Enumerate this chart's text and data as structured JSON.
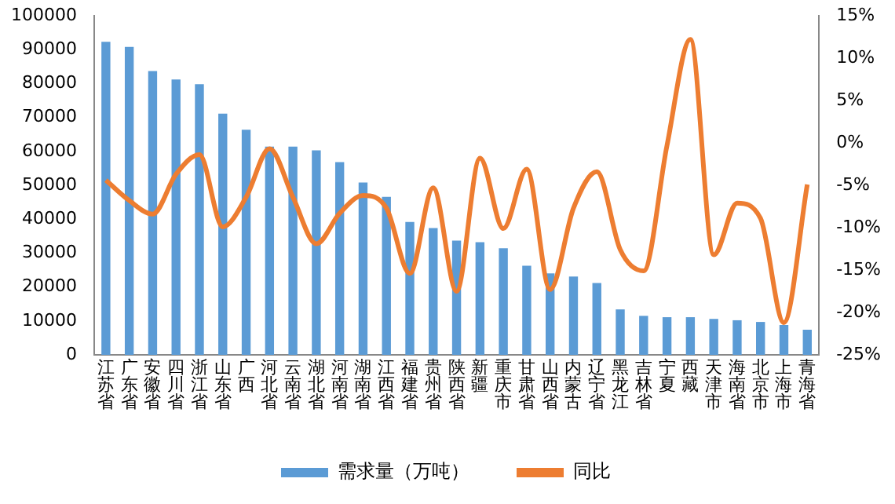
{
  "chart_data": {
    "type": "bar",
    "categories": [
      "江苏省",
      "广东省",
      "安徽省",
      "四川省",
      "浙江省",
      "山东省",
      "广西",
      "河北省",
      "云南省",
      "湖北省",
      "河南省",
      "湖南省",
      "江西省",
      "福建省",
      "贵州省",
      "陕西省",
      "新疆",
      "重庆市",
      "甘肃省",
      "山西省",
      "内蒙古",
      "辽宁省",
      "黑龙江",
      "吉林省",
      "宁夏",
      "西藏",
      "天津市",
      "海南省",
      "北京市",
      "上海市",
      "青海省"
    ],
    "series": [
      {
        "name": "需求量（万吨）",
        "color": "#5b9bd5",
        "values": [
          92300,
          90800,
          83700,
          81200,
          79800,
          71100,
          66400,
          61400,
          61400,
          60300,
          56800,
          50800,
          46600,
          39200,
          37400,
          33700,
          33200,
          31400,
          26300,
          24000,
          23100,
          21200,
          13400,
          11500,
          11100,
          11100,
          10600,
          10200,
          9700,
          8800,
          7400
        ]
      },
      {
        "name": "同比",
        "type": "line",
        "axis": "y2",
        "color": "#ed7d31",
        "values": [
          -4.4,
          -6.8,
          -8.4,
          -3.7,
          -1.4,
          -9.9,
          -6.4,
          -0.7,
          -6.4,
          -11.9,
          -8.3,
          -6.2,
          -7.7,
          -15.4,
          -5.3,
          -17.5,
          -1.8,
          -10.1,
          -3.1,
          -17.3,
          -7.7,
          -3.4,
          -12.6,
          -15.1,
          -0.3,
          12.2,
          -13.2,
          -7.1,
          -8.9,
          -21.2,
          -4.9
        ]
      }
    ],
    "ylim": [
      0,
      100000
    ],
    "yticks": [
      0,
      10000,
      20000,
      30000,
      40000,
      50000,
      60000,
      70000,
      80000,
      90000,
      100000
    ],
    "y2lim": [
      -25,
      15
    ],
    "y2ticks": [
      {
        "value": -25,
        "label": "-25%"
      },
      {
        "value": -20,
        "label": "-20%"
      },
      {
        "value": -15,
        "label": "-15%"
      },
      {
        "value": -10,
        "label": "-10%"
      },
      {
        "value": -5,
        "label": "-5%"
      },
      {
        "value": 0,
        "label": "0%"
      },
      {
        "value": 5,
        "label": "5%"
      },
      {
        "value": 10,
        "label": "10%"
      },
      {
        "value": 15,
        "label": "15%"
      }
    ],
    "grid": false,
    "legend": "bottom",
    "marker": "none"
  }
}
